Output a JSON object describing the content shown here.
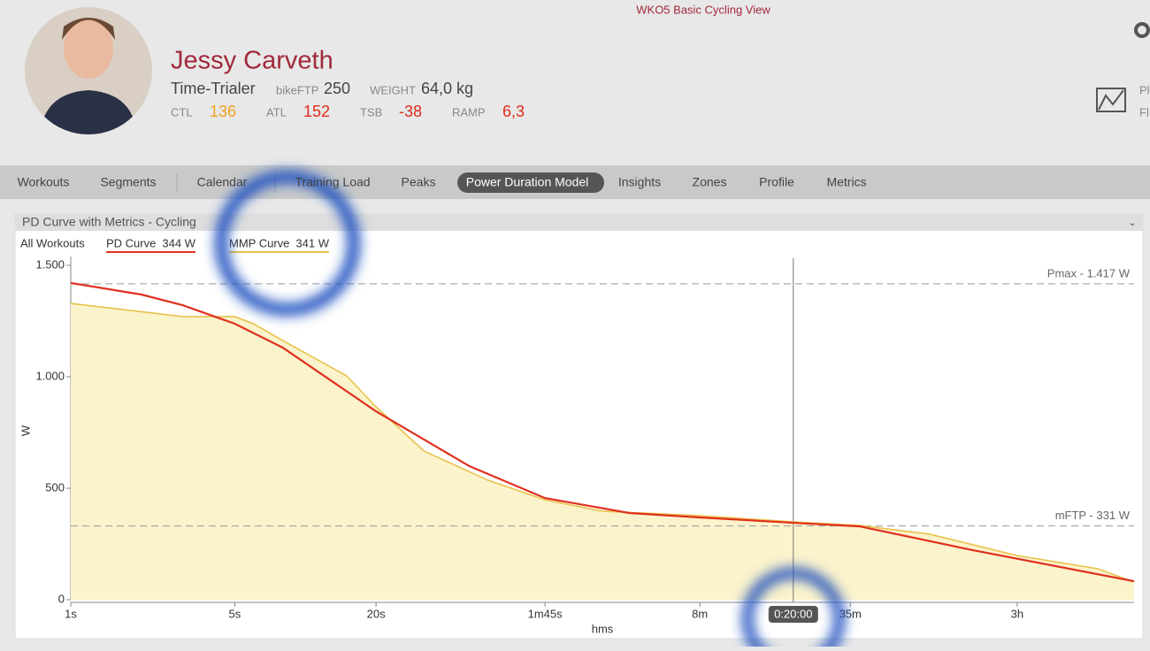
{
  "header": {
    "app_title": "WKO5 Basic Cycling View",
    "athlete": "Jessy Carveth",
    "role": "Time-Trialer",
    "ftp_label": "bikeFTP",
    "ftp": 250,
    "weight_label": "WEIGHT",
    "weight": "64,0 kg",
    "metrics": [
      {
        "label": "CTL",
        "value": 136
      },
      {
        "label": "ATL",
        "value": 152
      },
      {
        "label": "TSB",
        "value": -38
      },
      {
        "label": "RAMP",
        "value": "6,3"
      }
    ],
    "side": [
      "Pl",
      "Fl"
    ]
  },
  "nav": {
    "tabs": [
      "Workouts",
      "Segments",
      "Calendar",
      "Training Load",
      "Peaks",
      "Power Duration Model",
      "Insights",
      "Zones",
      "Profile",
      "Metrics"
    ],
    "active": 5
  },
  "panel": {
    "title": "PD Curve with Metrics - Cycling",
    "filter": "All Workouts"
  },
  "chart_data": {
    "type": "line",
    "xlabel": "hms",
    "ylabel": "W",
    "xscale": "log",
    "xlim": [
      1,
      34000
    ],
    "ylim": [
      0,
      1500
    ],
    "xticks": [
      {
        "value": 1,
        "label": "1s"
      },
      {
        "value": 5,
        "label": "5s"
      },
      {
        "value": 20,
        "label": "20s"
      },
      {
        "value": 105,
        "label": "1m45s"
      },
      {
        "value": 480,
        "label": "8m"
      },
      {
        "value": 2100,
        "label": "35m"
      },
      {
        "value": 10800,
        "label": "3h"
      }
    ],
    "yticks": [
      0,
      500,
      {
        "value": 1000,
        "label": "1.000"
      },
      {
        "value": 1500,
        "label": "1.500"
      }
    ],
    "series": [
      {
        "name": "PD Curve",
        "legend_value": "344 W",
        "color": "#e0301e",
        "x": [
          1,
          2,
          3,
          5,
          8,
          20,
          50,
          105,
          240,
          480,
          1200,
          2300,
          7000,
          34000
        ],
        "values": [
          1421,
          1369,
          1321,
          1238,
          1131,
          845,
          599,
          456,
          389,
          369,
          345,
          329,
          222,
          83
        ]
      },
      {
        "name": "MMP Curve",
        "legend_value": "341 W",
        "color": "#e8c24a",
        "fill": "#fbf3cc",
        "x": [
          1,
          3,
          5,
          6,
          8,
          15,
          20,
          32,
          60,
          105,
          184,
          480,
          1200,
          2300,
          4580,
          10800,
          23800,
          34000
        ],
        "values": [
          1329,
          1270,
          1270,
          1238,
          1163,
          1004,
          865,
          667,
          536,
          448,
          397,
          377,
          349,
          333,
          294,
          198,
          139,
          79
        ]
      }
    ],
    "reference_lines": [
      {
        "value": 1417,
        "label": "Pmax - 1.417 W"
      },
      {
        "value": 331,
        "label": "mFTP - 331 W"
      }
    ],
    "cursor": {
      "value": 1200,
      "label": "0:20:00"
    }
  }
}
